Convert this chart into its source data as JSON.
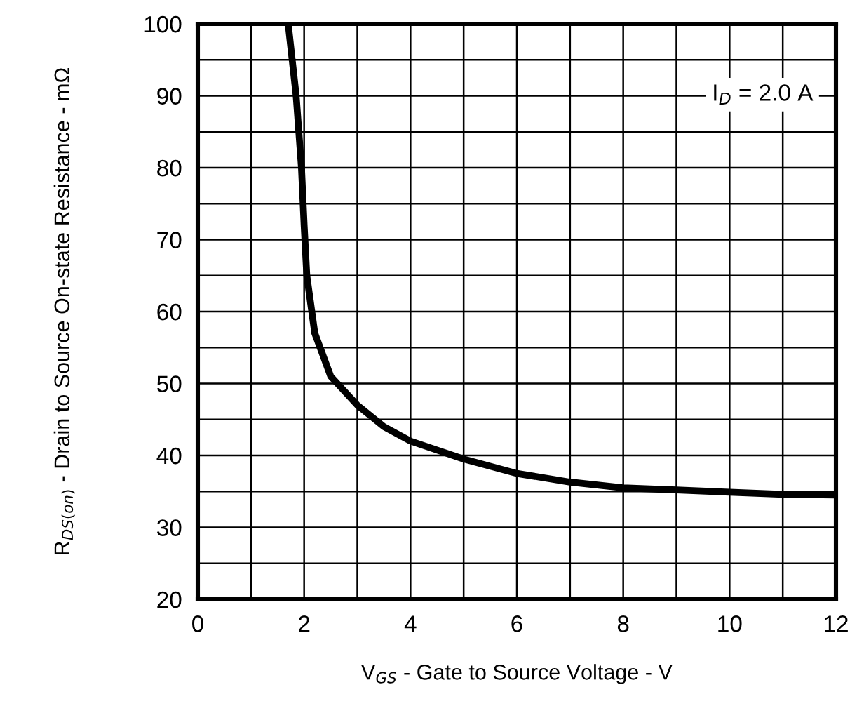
{
  "chart_data": {
    "type": "line",
    "xlabel": "V$_{GS}$ - Gate to Source Voltage - V",
    "ylabel": "R$_{DS(on)}$ - Drain to Source On-state Resistance - mΩ",
    "x": [
      1.7,
      1.85,
      1.95,
      2.0,
      2.05,
      2.2,
      2.5,
      3.0,
      3.5,
      4,
      5,
      6,
      7,
      8,
      9,
      10,
      11,
      12
    ],
    "series": [
      {
        "color": "#000000",
        "values": [
          100,
          90,
          80,
          72,
          65,
          57,
          51,
          47,
          44,
          42,
          39.5,
          37.5,
          36.3,
          35.5,
          35.2,
          34.9,
          34.6,
          34.5
        ]
      }
    ],
    "xlim": [
      0,
      12
    ],
    "ylim": [
      20,
      100
    ],
    "xticks": [
      0,
      {
        "value": 1,
        "label": null
      },
      2,
      {
        "value": 3,
        "label": null
      },
      4,
      {
        "value": 5,
        "label": null
      },
      6,
      {
        "value": 7,
        "label": null
      },
      8,
      {
        "value": 9,
        "label": null
      },
      10,
      {
        "value": 11,
        "label": null
      },
      12
    ],
    "yticks": [
      20,
      {
        "value": 25,
        "label": null
      },
      30,
      {
        "value": 35,
        "label": null
      },
      40,
      {
        "value": 45,
        "label": null
      },
      50,
      {
        "value": 55,
        "label": null
      },
      60,
      {
        "value": 65,
        "label": null
      },
      70,
      {
        "value": 75,
        "label": null
      },
      80,
      {
        "value": 85,
        "label": null
      },
      90,
      {
        "value": 95,
        "label": null
      },
      100
    ],
    "grid": true,
    "marker": "none",
    "line_style": "solid",
    "annotations": [
      "I$_{D}$ = 2.0 A"
    ]
  }
}
